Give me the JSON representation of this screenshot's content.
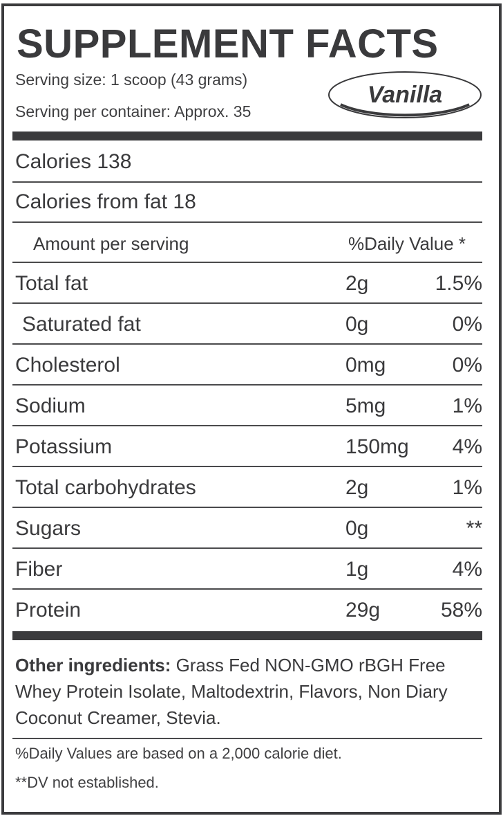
{
  "title": "SUPPLEMENT FACTS",
  "serving_size": "Serving size: 1 scoop (43 grams)",
  "servings_per_container": "Serving per container: Approx. 35",
  "flavor": "Vanilla",
  "calories": "Calories 138",
  "calories_from_fat": "Calories from fat 18",
  "table_header": {
    "amount": "Amount per serving",
    "daily_value": "%Daily Value *"
  },
  "nutrients": [
    {
      "name": "Total fat",
      "amount": "2g",
      "dv": "1.5%"
    },
    {
      "name": "Saturated fat",
      "amount": "0g",
      "dv": "0%"
    },
    {
      "name": "Cholesterol",
      "amount": "0mg",
      "dv": "0%"
    },
    {
      "name": "Sodium",
      "amount": "5mg",
      "dv": "1%"
    },
    {
      "name": "Potassium",
      "amount": "150mg",
      "dv": "4%"
    },
    {
      "name": "Total carbohydrates",
      "amount": "2g",
      "dv": "1%"
    },
    {
      "name": "Sugars",
      "amount": "0g",
      "dv": "**"
    },
    {
      "name": "Fiber",
      "amount": "1g",
      "dv": "4%"
    },
    {
      "name": "Protein",
      "amount": "29g",
      "dv": "58%"
    }
  ],
  "ingredients": {
    "label": "Other ingredients:",
    "text": " Grass Fed NON-GMO rBGH Free Whey Protein Isolate, Maltodextrin, Flavors, Non Diary Coconut Creamer, Stevia."
  },
  "footnotes": [
    "%Daily Values are based on a 2,000 calorie diet.",
    "**DV not established."
  ],
  "colors": {
    "ink": "#3a3a3c",
    "rule": "#3b3b3d"
  }
}
